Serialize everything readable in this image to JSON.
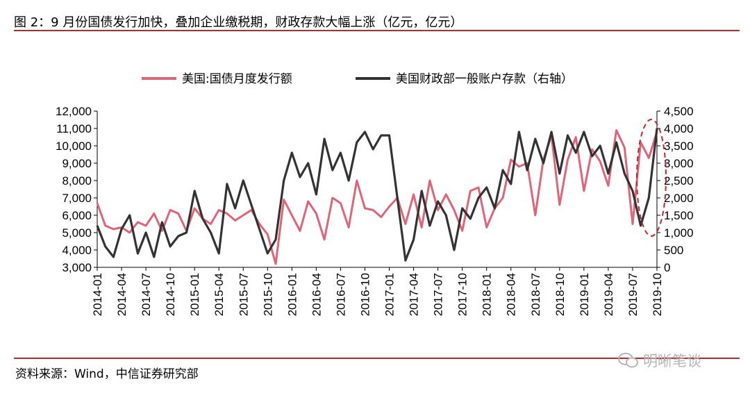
{
  "header": {
    "title": "图 2：9 月份国债发行加快，叠加企业缴税期，财政存款大幅上涨（亿元，亿元）"
  },
  "footer": {
    "source": "资料来源：Wind，中信证券研究部",
    "watermark": "明晰笔谈"
  },
  "chart_data": {
    "type": "line",
    "title": "图 2：9 月份国债发行加快，叠加企业缴税期，财政存款大幅上涨（亿元，亿元）",
    "legend_position": "top",
    "grid": false,
    "x_range": [
      "2014-01",
      "2019-10"
    ],
    "x_tick_labels": [
      "2014-01",
      "2014-04",
      "2014-07",
      "2014-10",
      "2015-01",
      "2015-04",
      "2015-07",
      "2015-10",
      "2016-01",
      "2016-04",
      "2016-07",
      "2016-10",
      "2017-01",
      "2017-04",
      "2017-07",
      "2017-10",
      "2018-01",
      "2018-04",
      "2018-07",
      "2018-10",
      "2019-01",
      "2019-04",
      "2019-07",
      "2019-10"
    ],
    "y_left": {
      "min": 3000,
      "max": 12000,
      "ticks": [
        "3,000",
        "4,000",
        "5,000",
        "6,000",
        "7,000",
        "8,000",
        "9,000",
        "10,000",
        "11,000",
        "12,000"
      ]
    },
    "y_right": {
      "min": 0,
      "max": 4500,
      "ticks": [
        "0",
        "500",
        "1,000",
        "1,500",
        "2,000",
        "2,500",
        "3,000",
        "3,500",
        "4,000",
        "4,500"
      ]
    },
    "series": [
      {
        "name": "美国:国债月度发行额",
        "axis": "left",
        "color": "#e06377",
        "x": [
          "2014-01",
          "2014-02",
          "2014-03",
          "2014-04",
          "2014-05",
          "2014-06",
          "2014-07",
          "2014-08",
          "2014-09",
          "2014-10",
          "2014-11",
          "2014-12",
          "2015-01",
          "2015-02",
          "2015-03",
          "2015-04",
          "2015-05",
          "2015-06",
          "2015-07",
          "2015-08",
          "2015-09",
          "2015-10",
          "2015-11",
          "2015-12",
          "2016-01",
          "2016-02",
          "2016-03",
          "2016-04",
          "2016-05",
          "2016-06",
          "2016-07",
          "2016-08",
          "2016-09",
          "2016-10",
          "2016-11",
          "2016-12",
          "2017-01",
          "2017-02",
          "2017-03",
          "2017-04",
          "2017-05",
          "2017-06",
          "2017-07",
          "2017-08",
          "2017-09",
          "2017-10",
          "2017-11",
          "2017-12",
          "2018-01",
          "2018-02",
          "2018-03",
          "2018-04",
          "2018-05",
          "2018-06",
          "2018-07",
          "2018-08",
          "2018-09",
          "2018-10",
          "2018-11",
          "2018-12",
          "2019-01",
          "2019-02",
          "2019-03",
          "2019-04",
          "2019-05",
          "2019-06",
          "2019-07",
          "2019-08",
          "2019-09",
          "2019-10"
        ],
        "values": [
          6700,
          5400,
          5200,
          5300,
          5000,
          5600,
          5400,
          6100,
          5100,
          6300,
          6100,
          5100,
          6400,
          5800,
          5500,
          6300,
          6100,
          5700,
          6000,
          6300,
          5500,
          4900,
          3200,
          6900,
          6000,
          5100,
          6800,
          6100,
          4600,
          7000,
          6700,
          5300,
          8000,
          6400,
          6300,
          5900,
          6500,
          7000,
          5500,
          7200,
          5300,
          8000,
          6300,
          7200,
          6300,
          5100,
          7400,
          7600,
          5300,
          6400,
          7000,
          9200,
          8800,
          9000,
          6000,
          9200,
          10600,
          6600,
          9200,
          10500,
          7400,
          9800,
          9100,
          7700,
          10900,
          9900,
          5500,
          10200,
          9300,
          10800
        ]
      },
      {
        "name": "美国财政部一般账户存款（右轴）",
        "axis": "right",
        "color": "#333333",
        "x": [
          "2014-01",
          "2014-02",
          "2014-03",
          "2014-04",
          "2014-05",
          "2014-06",
          "2014-07",
          "2014-08",
          "2014-09",
          "2014-10",
          "2014-11",
          "2014-12",
          "2015-01",
          "2015-02",
          "2015-03",
          "2015-04",
          "2015-05",
          "2015-06",
          "2015-07",
          "2015-08",
          "2015-09",
          "2015-10",
          "2015-11",
          "2015-12",
          "2016-01",
          "2016-02",
          "2016-03",
          "2016-04",
          "2016-05",
          "2016-06",
          "2016-07",
          "2016-08",
          "2016-09",
          "2016-10",
          "2016-11",
          "2016-12",
          "2017-01",
          "2017-02",
          "2017-03",
          "2017-04",
          "2017-05",
          "2017-06",
          "2017-07",
          "2017-08",
          "2017-09",
          "2017-10",
          "2017-11",
          "2017-12",
          "2018-01",
          "2018-02",
          "2018-03",
          "2018-04",
          "2018-05",
          "2018-06",
          "2018-07",
          "2018-08",
          "2018-09",
          "2018-10",
          "2018-11",
          "2018-12",
          "2019-01",
          "2019-02",
          "2019-03",
          "2019-04",
          "2019-05",
          "2019-06",
          "2019-07",
          "2019-08",
          "2019-09",
          "2019-10"
        ],
        "values": [
          1200,
          600,
          300,
          1100,
          1500,
          400,
          1000,
          300,
          1300,
          600,
          900,
          1000,
          2200,
          1400,
          1000,
          400,
          2400,
          1700,
          2500,
          1800,
          1100,
          400,
          800,
          2500,
          3300,
          2600,
          3000,
          2100,
          3700,
          2800,
          3300,
          2500,
          3600,
          3900,
          3400,
          3800,
          3800,
          2000,
          200,
          800,
          2200,
          1200,
          1900,
          1500,
          500,
          1700,
          1400,
          2000,
          2300,
          1700,
          2800,
          2400,
          3900,
          2800,
          3700,
          3000,
          3900,
          2700,
          3800,
          3300,
          3900,
          3200,
          3500,
          2700,
          3600,
          2700,
          2200,
          1200,
          2000,
          4000
        ]
      }
    ]
  }
}
